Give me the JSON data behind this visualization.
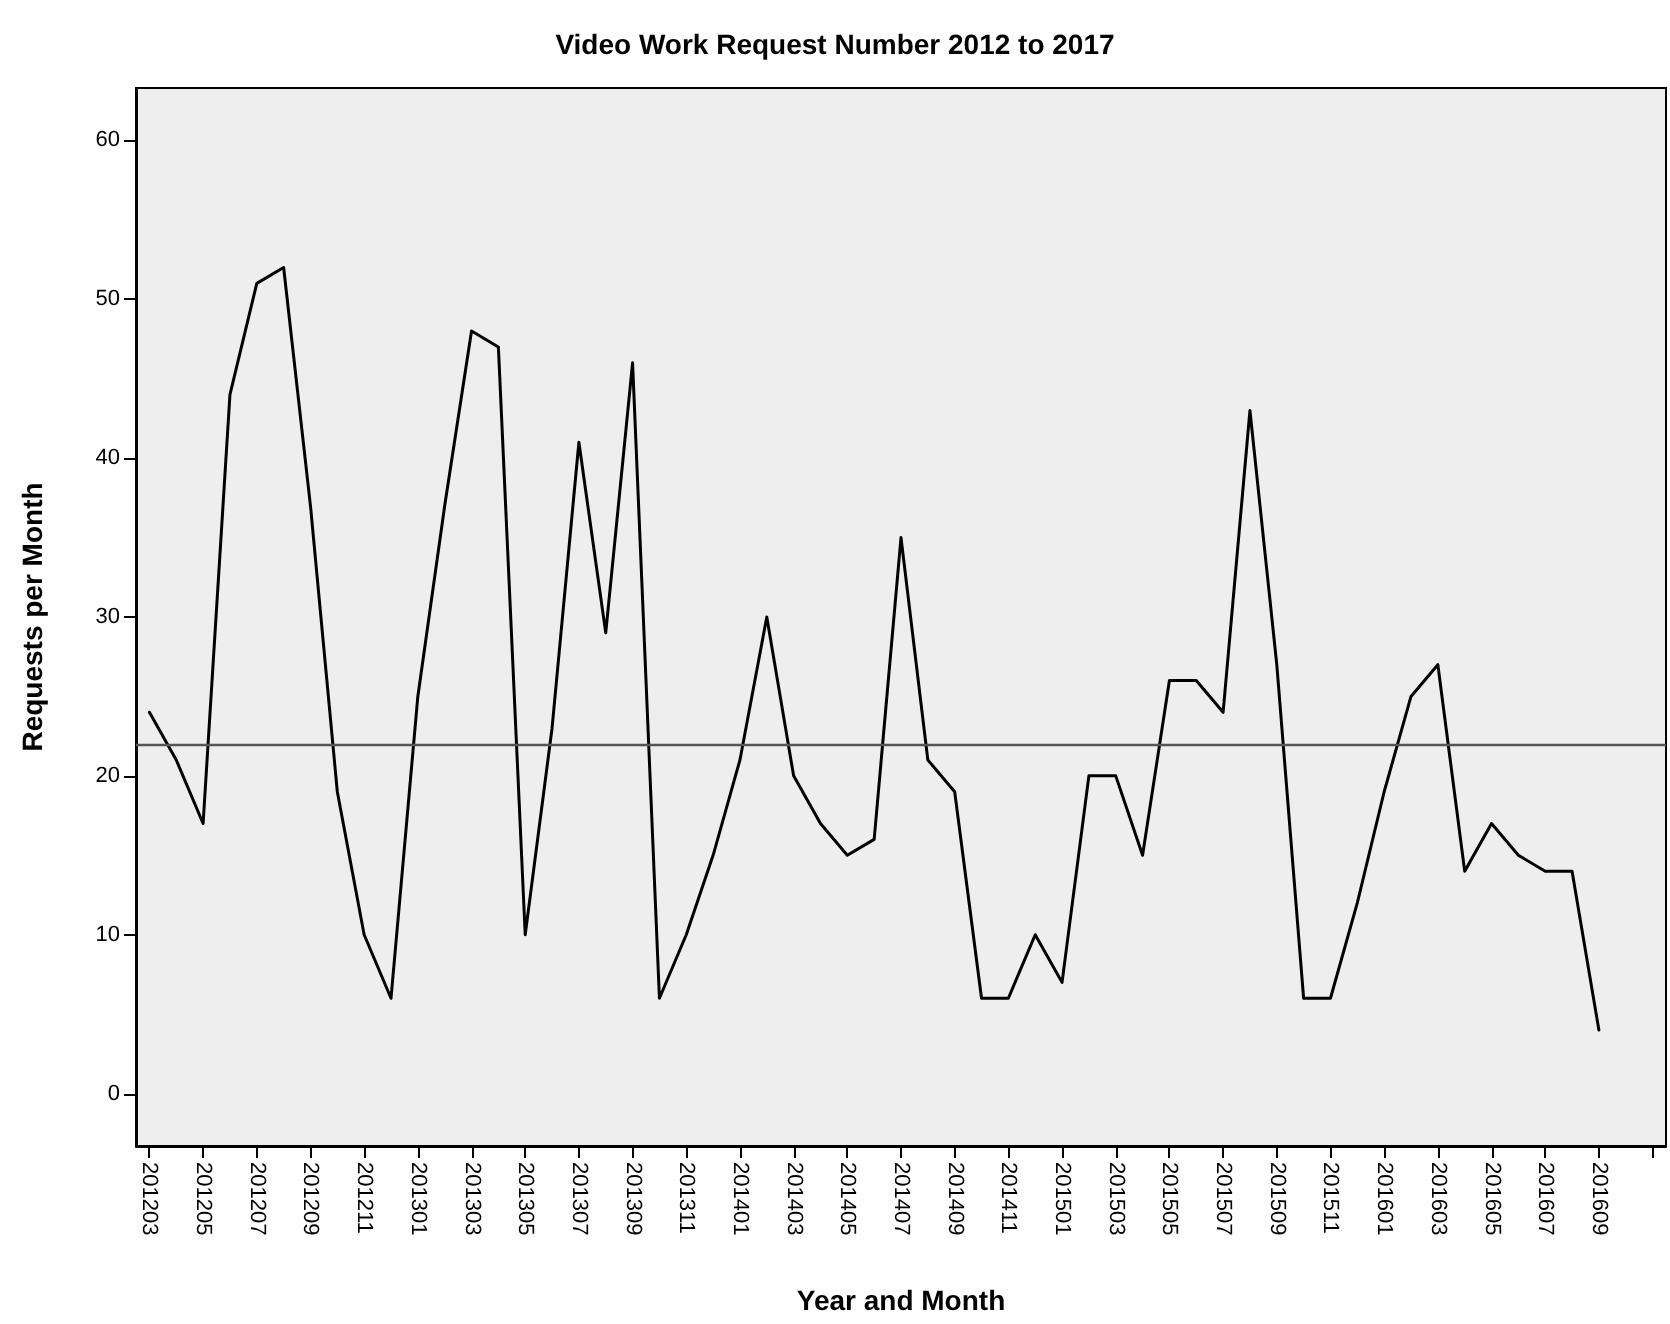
{
  "chart_data": {
    "type": "line",
    "title": "Video Work Request Number 2012 to 2017",
    "xlabel": "Year and Month",
    "ylabel": "Requests per Month",
    "categories": [
      "201203",
      null,
      "201205",
      null,
      "201207",
      null,
      "201209",
      null,
      "201211",
      null,
      "201301",
      null,
      "201303",
      null,
      "201305",
      null,
      "201307",
      null,
      "201309",
      null,
      "201311",
      null,
      "201401",
      null,
      "201403",
      null,
      "201405",
      null,
      "201407",
      null,
      "201409",
      null,
      "201411",
      null,
      "201501",
      null,
      "201503",
      null,
      "201505",
      null,
      "201507",
      null,
      "201509",
      null,
      "201511",
      null,
      "201601",
      null,
      "201603",
      null,
      "201605",
      null,
      "201607",
      null,
      "201609",
      null,
      null
    ],
    "series": [
      {
        "color": "#000000",
        "values": [
          24,
          21,
          17,
          44,
          51,
          52,
          37,
          19,
          10,
          6,
          25,
          37,
          48,
          47,
          10,
          23,
          41,
          29,
          46,
          6,
          10,
          15,
          21,
          30,
          20,
          17,
          15,
          16,
          35,
          21,
          19,
          6,
          6,
          10,
          7,
          20,
          20,
          15,
          26,
          26,
          24,
          43,
          27,
          6,
          6,
          12,
          19,
          25,
          27,
          14,
          17,
          15,
          14,
          14,
          4,
          null,
          null
        ]
      }
    ],
    "ylim": [
      -3.3,
      63.3
    ],
    "yticks": [
      0,
      10,
      20,
      30,
      40,
      50,
      60
    ],
    "grid": false,
    "marker": "none",
    "line_style": "solid",
    "ref_lines": [
      {
        "axis": "y",
        "value": 22,
        "color": "#555555"
      }
    ]
  }
}
